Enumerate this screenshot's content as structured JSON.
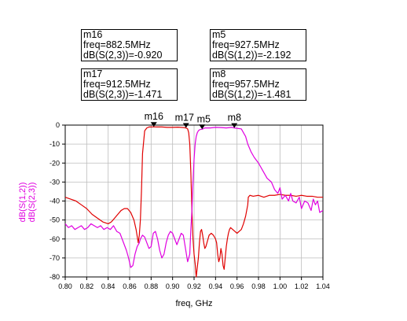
{
  "markers_table": [
    {
      "name": "m16",
      "freq_text": "freq=882.5MHz",
      "value_text": "dB(S(2,3))=-0.920"
    },
    {
      "name": "m5",
      "freq_text": "freq=927.5MHz",
      "value_text": "dB(S(1,2))=-2.192"
    },
    {
      "name": "m17",
      "freq_text": "freq=912.5MHz",
      "value_text": "dB(S(2,3))=-1.471"
    },
    {
      "name": "m8",
      "freq_text": "freq=957.5MHz",
      "value_text": "dB(S(1,2))=-1.481"
    }
  ],
  "chart_data": {
    "type": "line",
    "title": "",
    "xlabel": "freq, GHz",
    "ylabel_lines": [
      "dB(S(1,2))",
      "dB(S(2,3))"
    ],
    "xlim": [
      0.8,
      1.04
    ],
    "ylim": [
      -80,
      0
    ],
    "x_ticks": [
      0.8,
      0.82,
      0.84,
      0.86,
      0.88,
      0.9,
      0.92,
      0.94,
      0.96,
      0.98,
      1.0,
      1.02,
      1.04
    ],
    "x_tick_labels": [
      "0.80",
      "0.82",
      "0.84",
      "0.86",
      "0.88",
      "0.90",
      "0.92",
      "0.94",
      "0.96",
      "0.98",
      "1.00",
      "1.02",
      "1.04"
    ],
    "y_ticks": [
      0,
      -10,
      -20,
      -30,
      -40,
      -50,
      -60,
      -70,
      -80
    ],
    "y_tick_labels": [
      "0",
      "-10",
      "-20",
      "-30",
      "-40",
      "-50",
      "-60",
      "-70",
      "-80"
    ],
    "grid": true,
    "series": [
      {
        "name": "dB(S(2,3))",
        "color": "#e00000",
        "x": [
          0.8,
          0.805,
          0.81,
          0.815,
          0.82,
          0.825,
          0.83,
          0.835,
          0.84,
          0.843,
          0.846,
          0.849,
          0.852,
          0.855,
          0.858,
          0.861,
          0.864,
          0.866,
          0.868,
          0.869,
          0.87,
          0.871,
          0.872,
          0.874,
          0.876,
          0.878,
          0.88,
          0.8825,
          0.885,
          0.89,
          0.895,
          0.9,
          0.905,
          0.91,
          0.9125,
          0.914,
          0.915,
          0.916,
          0.917,
          0.918,
          0.919,
          0.92,
          0.921,
          0.922,
          0.923,
          0.924,
          0.925,
          0.926,
          0.927,
          0.928,
          0.929,
          0.93,
          0.931,
          0.932,
          0.933,
          0.934,
          0.936,
          0.938,
          0.94,
          0.941,
          0.942,
          0.943,
          0.944,
          0.945,
          0.946,
          0.947,
          0.948,
          0.949,
          0.95,
          0.951,
          0.952,
          0.953,
          0.954,
          0.956,
          0.958,
          0.96,
          0.962,
          0.964,
          0.966,
          0.968,
          0.97,
          0.9705,
          0.972,
          0.975,
          0.98,
          0.985,
          0.99,
          0.995,
          1.0,
          1.005,
          1.01,
          1.015,
          1.02,
          1.025,
          1.03,
          1.035,
          1.04
        ],
        "y": [
          -38,
          -39,
          -40,
          -42,
          -44,
          -47,
          -49,
          -51,
          -52,
          -51,
          -49,
          -47,
          -45,
          -44,
          -44,
          -46,
          -50,
          -55,
          -62,
          -58,
          -50,
          -35,
          -15,
          -3,
          -1.5,
          -1,
          -1,
          -0.9,
          -1,
          -1,
          -1.2,
          -1.2,
          -1.1,
          -1.3,
          -1.5,
          -2,
          -4,
          -10,
          -25,
          -45,
          -60,
          -68,
          -73,
          -80,
          -75,
          -70,
          -62,
          -56,
          -55,
          -58,
          -62,
          -65,
          -64,
          -62,
          -60,
          -58,
          -57,
          -58,
          -60,
          -62,
          -68,
          -72,
          -70,
          -65,
          -68,
          -74,
          -76,
          -70,
          -64,
          -60,
          -57,
          -55,
          -54,
          -55,
          -56,
          -57,
          -56,
          -55,
          -52,
          -48,
          -42,
          -38,
          -37,
          -37.5,
          -37,
          -38,
          -37,
          -37,
          -36.5,
          -37,
          -37,
          -37.5,
          -37,
          -37.5,
          -37.5,
          -38,
          -38
        ]
      },
      {
        "name": "dB(S(1,2))",
        "color": "#e000e0",
        "x": [
          0.8,
          0.803,
          0.806,
          0.809,
          0.812,
          0.815,
          0.818,
          0.821,
          0.824,
          0.827,
          0.83,
          0.833,
          0.836,
          0.839,
          0.842,
          0.845,
          0.848,
          0.851,
          0.853,
          0.855,
          0.857,
          0.859,
          0.861,
          0.863,
          0.865,
          0.867,
          0.869,
          0.87,
          0.872,
          0.874,
          0.876,
          0.878,
          0.88,
          0.882,
          0.884,
          0.886,
          0.888,
          0.89,
          0.892,
          0.894,
          0.896,
          0.898,
          0.9,
          0.902,
          0.904,
          0.906,
          0.908,
          0.91,
          0.912,
          0.914,
          0.916,
          0.917,
          0.918,
          0.919,
          0.92,
          0.921,
          0.922,
          0.923,
          0.924,
          0.925,
          0.926,
          0.927,
          0.9275,
          0.93,
          0.935,
          0.94,
          0.945,
          0.95,
          0.955,
          0.9575,
          0.96,
          0.964,
          0.966,
          0.968,
          0.97,
          0.973,
          0.976,
          0.98,
          0.984,
          0.988,
          0.992,
          0.995,
          0.998,
          1.0,
          1.002,
          1.005,
          1.008,
          1.01,
          1.012,
          1.015,
          1.018,
          1.02,
          1.023,
          1.026,
          1.029,
          1.031,
          1.033,
          1.035,
          1.037,
          1.04
        ],
        "y": [
          -52,
          -54,
          -53,
          -55,
          -54,
          -53,
          -55,
          -54,
          -52,
          -53,
          -54,
          -53,
          -55,
          -54,
          -55,
          -53,
          -56,
          -57,
          -60,
          -63,
          -66,
          -70,
          -75,
          -74,
          -68,
          -64,
          -62,
          -60,
          -58,
          -59,
          -62,
          -65,
          -64,
          -57,
          -56,
          -60,
          -66,
          -70,
          -68,
          -62,
          -58,
          -56,
          -57,
          -60,
          -63,
          -60,
          -57,
          -58,
          -65,
          -72,
          -68,
          -55,
          -45,
          -30,
          -18,
          -10,
          -6,
          -4,
          -3,
          -2.5,
          -2.3,
          -2.2,
          -2.2,
          -1.5,
          -1.5,
          -1.2,
          -1.3,
          -1.5,
          -1.2,
          -1.5,
          -1.7,
          -2,
          -4,
          -6,
          -10,
          -14,
          -17,
          -20,
          -24,
          -28,
          -30,
          -34,
          -36,
          -33,
          -39,
          -37,
          -40,
          -36,
          -40,
          -41,
          -38,
          -44,
          -40,
          -41,
          -45,
          -39,
          -42,
          -40,
          -46,
          -45
        ]
      }
    ],
    "markers": [
      {
        "name": "m16",
        "series": "dB(S(2,3))",
        "x": 0.8825,
        "y": -0.92
      },
      {
        "name": "m17",
        "series": "dB(S(2,3))",
        "x": 0.9125,
        "y": -1.471
      },
      {
        "name": "m5",
        "series": "dB(S(1,2))",
        "x": 0.9275,
        "y": -2.192
      },
      {
        "name": "m8",
        "series": "dB(S(1,2))",
        "x": 0.9575,
        "y": -1.481
      }
    ]
  }
}
